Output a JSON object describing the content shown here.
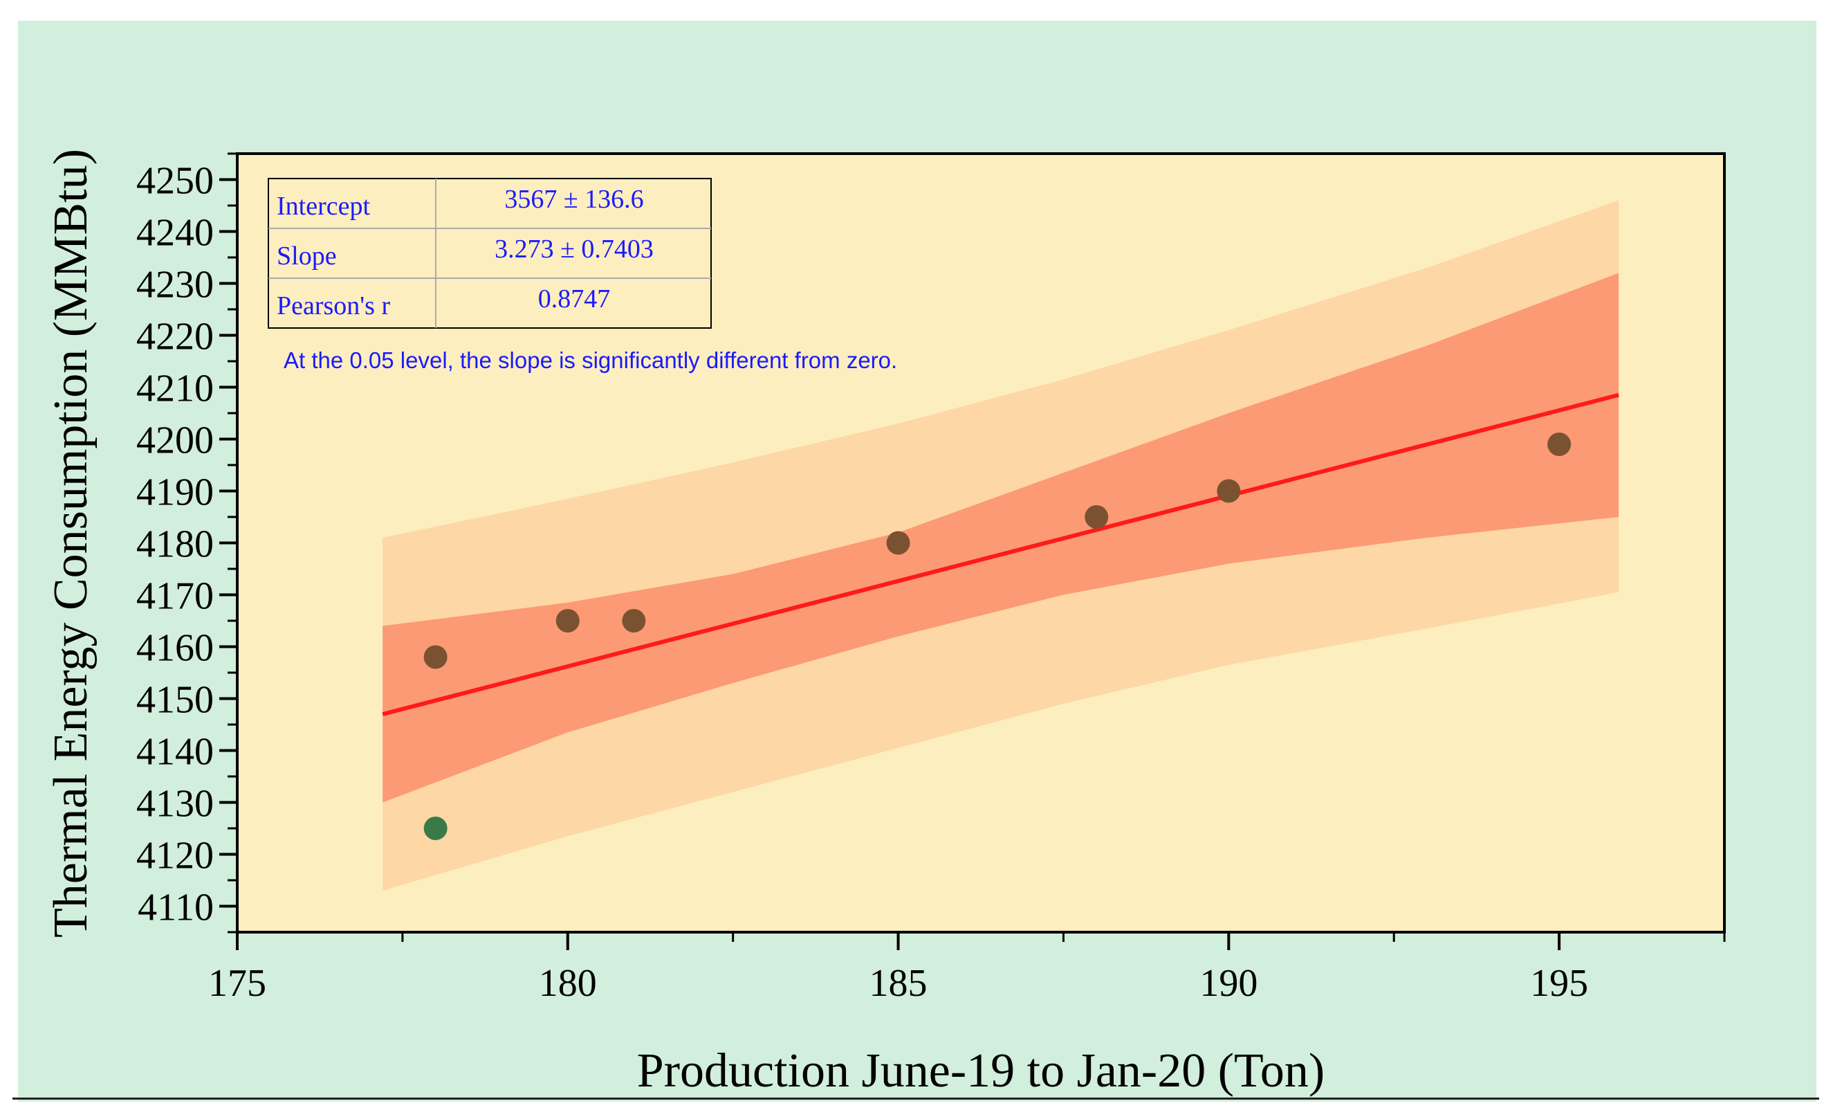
{
  "colors": {
    "panel": "#d2eedd",
    "plot_bg": "#fdeebf",
    "prediction_band": "#fdd7a6",
    "confidence_band": "#fb9a74",
    "fit_line": "#ff1a1a",
    "point": "#7a5232",
    "point_outlier": "#3a7a48",
    "stats_text": "#1a1aff"
  },
  "chart_data": {
    "type": "scatter",
    "title": "",
    "xlabel": "Production June-19 to Jan-20 (Ton)",
    "ylabel": "Thermal Energy Consumption (MMBtu)",
    "xlim": [
      175,
      197.5
    ],
    "ylim": [
      4105,
      4255
    ],
    "x_ticks": [
      175,
      180,
      185,
      190,
      195
    ],
    "x_tick_labels": [
      "175",
      "180",
      "185",
      "190",
      "195"
    ],
    "y_ticks": [
      4110,
      4120,
      4130,
      4140,
      4150,
      4160,
      4170,
      4180,
      4190,
      4200,
      4210,
      4220,
      4230,
      4240,
      4250
    ],
    "y_tick_labels": [
      "4110",
      "4120",
      "4130",
      "4140",
      "4150",
      "4160",
      "4170",
      "4180",
      "4190",
      "4200",
      "4210",
      "4220",
      "4230",
      "4240",
      "4250"
    ],
    "points": [
      {
        "x": 178,
        "y": 4158
      },
      {
        "x": 178,
        "y": 4125,
        "outlier": true
      },
      {
        "x": 180,
        "y": 4165
      },
      {
        "x": 181,
        "y": 4165
      },
      {
        "x": 185,
        "y": 4180
      },
      {
        "x": 188,
        "y": 4185
      },
      {
        "x": 190,
        "y": 4190
      },
      {
        "x": 195,
        "y": 4199
      }
    ],
    "fit_line": {
      "x": [
        177.2,
        195.9
      ],
      "y": [
        4147,
        4208.5
      ]
    },
    "confidence_band": {
      "x": [
        177.2,
        180,
        182.5,
        185,
        187.5,
        190,
        193,
        195.9
      ],
      "upper": [
        4164,
        4168.5,
        4174,
        4182,
        4193.5,
        4205,
        4218,
        4232
      ],
      "lower": [
        4130,
        4143.5,
        4153,
        4162,
        4170,
        4176,
        4181,
        4185
      ]
    },
    "prediction_band": {
      "x": [
        177.2,
        180,
        182.5,
        185,
        187.5,
        190,
        193,
        195.9
      ],
      "upper": [
        4181,
        4188.5,
        4195.5,
        4203,
        4211.5,
        4221,
        4233,
        4246
      ],
      "lower": [
        4113,
        4123.5,
        4132,
        4140.5,
        4149,
        4156.5,
        4163.5,
        4170.5
      ]
    },
    "stats_table": [
      {
        "label": "Intercept",
        "value": "3567 ± 136.6"
      },
      {
        "label": "Slope",
        "value": "3.273 ± 0.7403"
      },
      {
        "label": "Pearson's r",
        "value": "0.8747"
      }
    ],
    "note": "At the 0.05 level, the slope is significantly different from zero."
  }
}
